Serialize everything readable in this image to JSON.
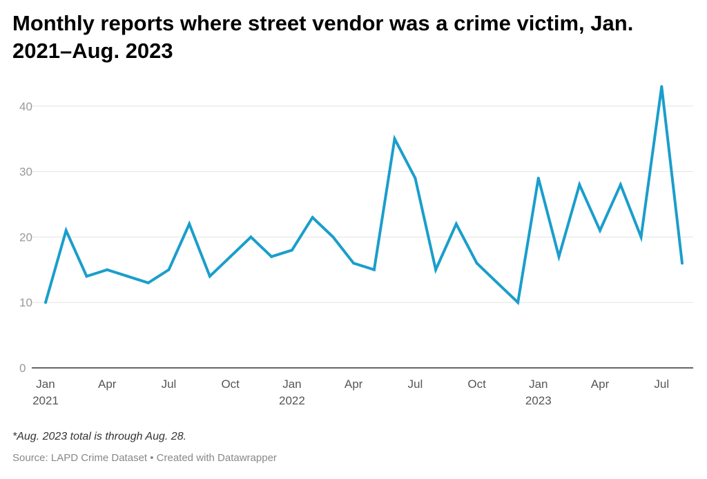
{
  "chart_data": {
    "type": "line",
    "title": "Monthly reports where street vendor was a crime victim, Jan. 2021–Aug. 2023",
    "xlabel": "",
    "ylabel": "",
    "ylim": [
      0,
      45
    ],
    "yticks": [
      0,
      10,
      20,
      30,
      40
    ],
    "grid": true,
    "colors": {
      "line": "#1a9ecb",
      "grid": "#e3e3e3",
      "axis": "#333333"
    },
    "x_tick_labels": [
      {
        "index": 0,
        "label": "Jan",
        "year": "2021"
      },
      {
        "index": 3,
        "label": "Apr",
        "year": ""
      },
      {
        "index": 6,
        "label": "Jul",
        "year": ""
      },
      {
        "index": 9,
        "label": "Oct",
        "year": ""
      },
      {
        "index": 12,
        "label": "Jan",
        "year": "2022"
      },
      {
        "index": 15,
        "label": "Apr",
        "year": ""
      },
      {
        "index": 18,
        "label": "Jul",
        "year": ""
      },
      {
        "index": 21,
        "label": "Oct",
        "year": ""
      },
      {
        "index": 24,
        "label": "Jan",
        "year": "2023"
      },
      {
        "index": 27,
        "label": "Apr",
        "year": ""
      },
      {
        "index": 30,
        "label": "Jul",
        "year": ""
      }
    ],
    "series": [
      {
        "x": [
          "2021-01",
          "2021-02",
          "2021-03",
          "2021-04",
          "2021-05",
          "2021-06",
          "2021-07",
          "2021-08",
          "2021-09",
          "2021-10",
          "2021-11",
          "2021-12",
          "2022-01",
          "2022-02",
          "2022-03",
          "2022-04",
          "2022-05",
          "2022-06",
          "2022-07",
          "2022-08",
          "2022-09",
          "2022-10",
          "2022-11",
          "2022-12",
          "2023-01",
          "2023-02",
          "2023-03",
          "2023-04",
          "2023-05",
          "2023-06",
          "2023-07",
          "2023-08"
        ],
        "values": [
          10,
          21,
          14,
          15,
          14,
          13,
          15,
          22,
          14,
          17,
          20,
          17,
          18,
          23,
          20,
          16,
          15,
          35,
          29,
          15,
          22,
          16,
          13,
          10,
          29,
          17,
          28,
          21,
          28,
          20,
          43,
          16
        ]
      }
    ]
  },
  "footer": {
    "note": "*Aug. 2023 total is through Aug. 28.",
    "source": "Source: LAPD Crime Dataset • Created with Datawrapper"
  }
}
